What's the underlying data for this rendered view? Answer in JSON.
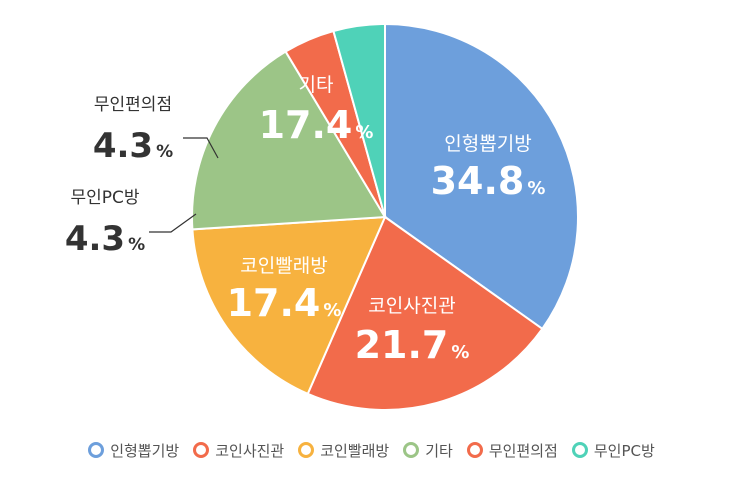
{
  "chart_data": {
    "type": "pie",
    "title": "",
    "unit": "%",
    "categories": [
      "인형뽑기방",
      "코인사진관",
      "코인빨래방",
      "기타",
      "무인편의점",
      "무인PC방"
    ],
    "values": [
      34.8,
      21.7,
      17.4,
      17.4,
      4.3,
      4.3
    ],
    "value_labels": [
      "34.8",
      "21.7",
      "17.4",
      "17.4",
      "4.3",
      "4.3"
    ],
    "colors": [
      "#6d9fdc",
      "#f26b4b",
      "#f7b23f",
      "#9cc587",
      "#f26b4b",
      "#4fd2b8"
    ],
    "label_colors": [
      "#ffffff",
      "#ffffff",
      "#ffffff",
      "#ffffff",
      "#333333",
      "#333333"
    ],
    "start_angle_deg": 0,
    "direction": "clockwise",
    "legend_position": "bottom",
    "legend": [
      {
        "label": "인형뽑기방",
        "color": "#6d9fdc"
      },
      {
        "label": "코인사진관",
        "color": "#f26b4b"
      },
      {
        "label": "코인빨래방",
        "color": "#f7b23f"
      },
      {
        "label": "기타",
        "color": "#9cc587"
      },
      {
        "label": "무인편의점",
        "color": "#f26b4b"
      },
      {
        "label": "무인PC방",
        "color": "#4fd2b8"
      }
    ]
  }
}
